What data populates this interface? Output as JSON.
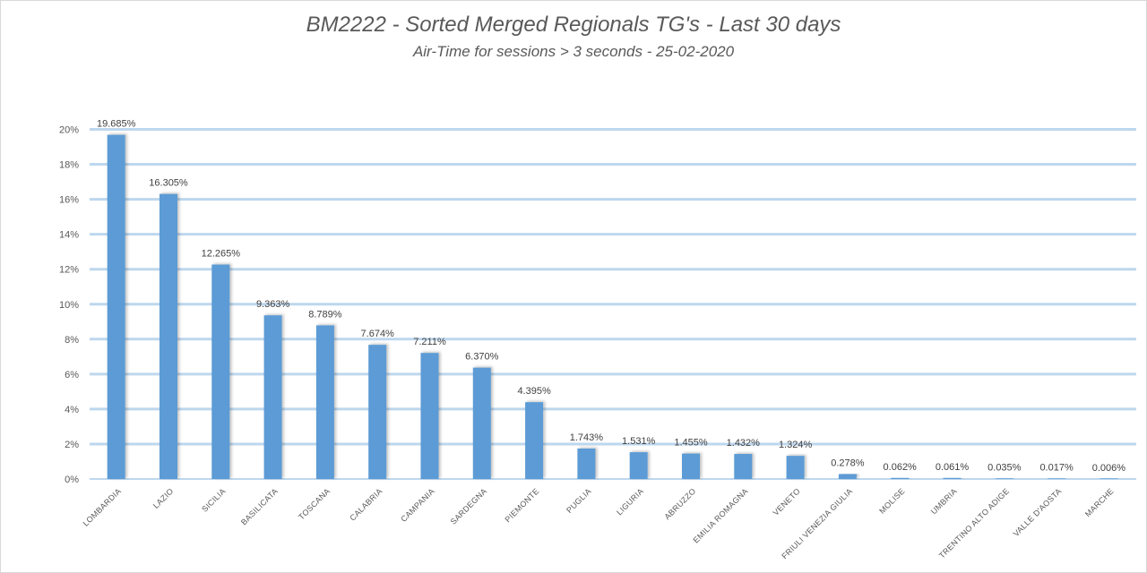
{
  "chart_data": {
    "type": "bar",
    "title": "BM2222 - Sorted Merged Regionals TG's - Last 30 days",
    "subtitle": "Air-Time for sessions > 3 seconds - 25-02-2020",
    "categories": [
      "Lombardia",
      "Lazio",
      "Sicilia",
      "Basilicata",
      "Toscana",
      "Calabria",
      "Campania",
      "Sardegna",
      "Piemonte",
      "Puglia",
      "Liguria",
      "Abruzzo",
      "Emilia Romagna",
      "Veneto",
      "Friuli Venezia Giulia",
      "Molise",
      "Umbria",
      "Trentino Alto Adige",
      "Valle d'Aosta",
      "Marche"
    ],
    "values": [
      19.685,
      16.305,
      12.265,
      9.363,
      8.789,
      7.674,
      7.211,
      6.37,
      4.395,
      1.743,
      1.531,
      1.455,
      1.432,
      1.324,
      0.278,
      0.062,
      0.061,
      0.035,
      0.017,
      0.006
    ],
    "data_labels": [
      "19.685%",
      "16.305%",
      "12.265%",
      "9.363%",
      "8.789%",
      "7.674%",
      "7.211%",
      "6.370%",
      "4.395%",
      "1.743%",
      "1.531%",
      "1.455%",
      "1.432%",
      "1.324%",
      "0.278%",
      "0.062%",
      "0.061%",
      "0.035%",
      "0.017%",
      "0.006%"
    ],
    "y_ticks": [
      "0%",
      "2%",
      "4%",
      "6%",
      "8%",
      "10%",
      "12%",
      "14%",
      "16%",
      "18%",
      "20%"
    ],
    "ylim": [
      0,
      20
    ],
    "xlabel": "",
    "ylabel": "",
    "grid": true,
    "legend": "none",
    "colors": {
      "bar": "#5b9bd5",
      "grid": "#bdd7ee",
      "text": "#595959"
    }
  }
}
